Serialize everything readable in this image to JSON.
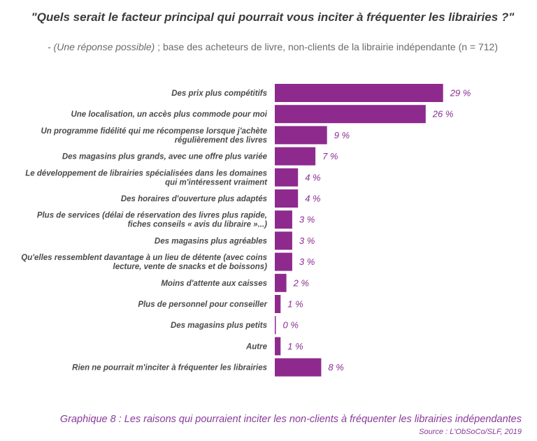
{
  "header": {
    "title": "\"Quels serait le facteur principal qui pourrait vous inciter à fréquenter les librairies ?\"",
    "subtitle_italic": "- (Une réponse possible)",
    "subtitle_rest": " ; base des acheteurs de livre, non-clients de la librairie indépendante (n = 712)"
  },
  "chart_data": {
    "type": "bar",
    "orientation": "horizontal",
    "categories": [
      [
        "Des prix plus compétitifs"
      ],
      [
        "Une localisation, un accès plus commode pour moi"
      ],
      [
        "Un programme fidélité qui me récompense lorsque j'achète",
        "régulièrement des livres"
      ],
      [
        "Des magasins plus grands, avec une offre plus variée"
      ],
      [
        "Le développement de librairies spécialisées dans les domaines",
        "qui m'intéressent vraiment"
      ],
      [
        "Des horaires d'ouverture plus adaptés"
      ],
      [
        "Plus de services (délai de réservation des livres plus rapide,",
        "fiches conseils « avis du libraire »...)"
      ],
      [
        "Des magasins plus agréables"
      ],
      [
        "Qu'elles ressemblent davantage à un lieu de détente (avec coins",
        "lecture, vente de snacks et de boissons)"
      ],
      [
        "Moins d'attente aux caisses"
      ],
      [
        "Plus de personnel pour conseiller"
      ],
      [
        "Des magasins plus petits"
      ],
      [
        "Autre"
      ],
      [
        "Rien ne pourrait m'inciter à fréquenter les librairies"
      ]
    ],
    "values": [
      29,
      26,
      9,
      7,
      4,
      4,
      3,
      3,
      3,
      2,
      1,
      0,
      1,
      8
    ],
    "value_labels": [
      "29 %",
      "26 %",
      "9 %",
      "7 %",
      "4 %",
      "4 %",
      "3 %",
      "3 %",
      "3 %",
      "2 %",
      "1 %",
      "0 %",
      "1 %",
      "8 %"
    ],
    "unit": "%",
    "bar_color": "#8e2a8e",
    "value_label_color": "#8a2b91",
    "grid": false,
    "legend": "none"
  },
  "footer": {
    "caption": "Graphique 8 : Les raisons qui pourraient inciter les non-clients à fréquenter les librairies indépendantes",
    "source": "Source : L'ObSoCo/SLF, 2019"
  }
}
